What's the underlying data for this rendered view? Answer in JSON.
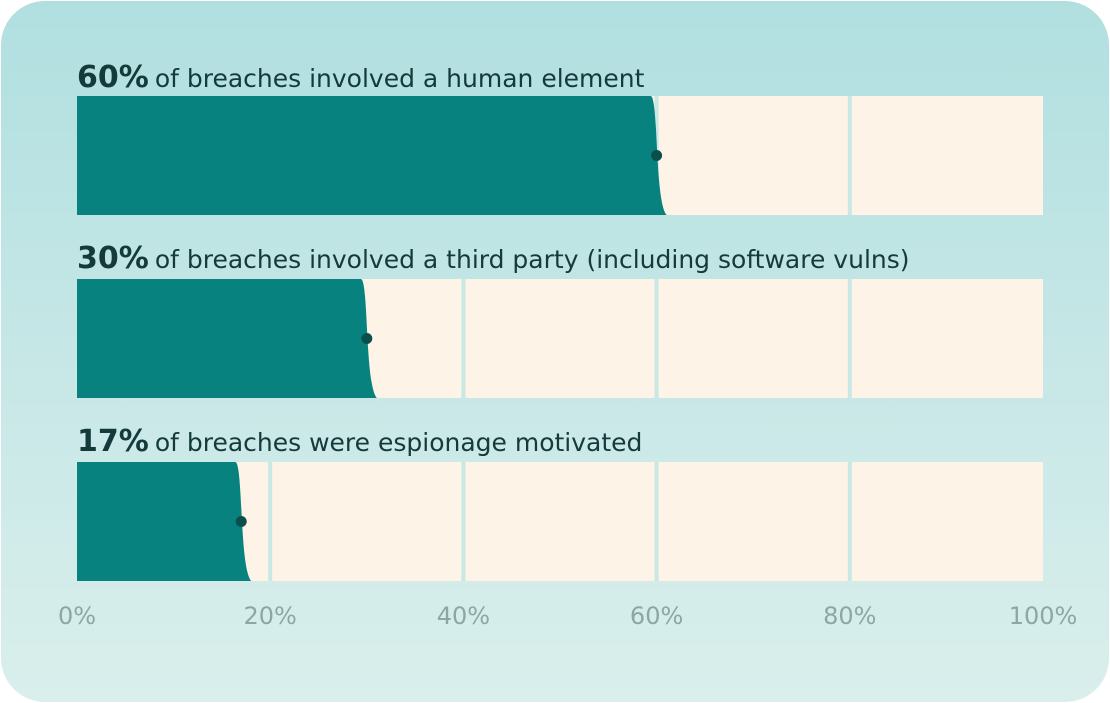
{
  "chart_data": {
    "type": "hbar",
    "categories": [
      "of breaches involved a human element",
      "of breaches involved a third party (including software vulns)",
      "of breaches were espionage motivated"
    ],
    "values": [
      60,
      30,
      17
    ],
    "value_labels": [
      "60%",
      "30%",
      "17%"
    ],
    "color": "#08827f",
    "xlim": [
      0,
      100
    ],
    "xticks": [
      {
        "value": 0,
        "label": "0%"
      },
      {
        "value": 20,
        "label": "20%"
      },
      {
        "value": 40,
        "label": "40%"
      },
      {
        "value": 60,
        "label": "60%"
      },
      {
        "value": 80,
        "label": "80%"
      },
      {
        "value": 100,
        "label": "100%"
      }
    ],
    "grid": true
  }
}
